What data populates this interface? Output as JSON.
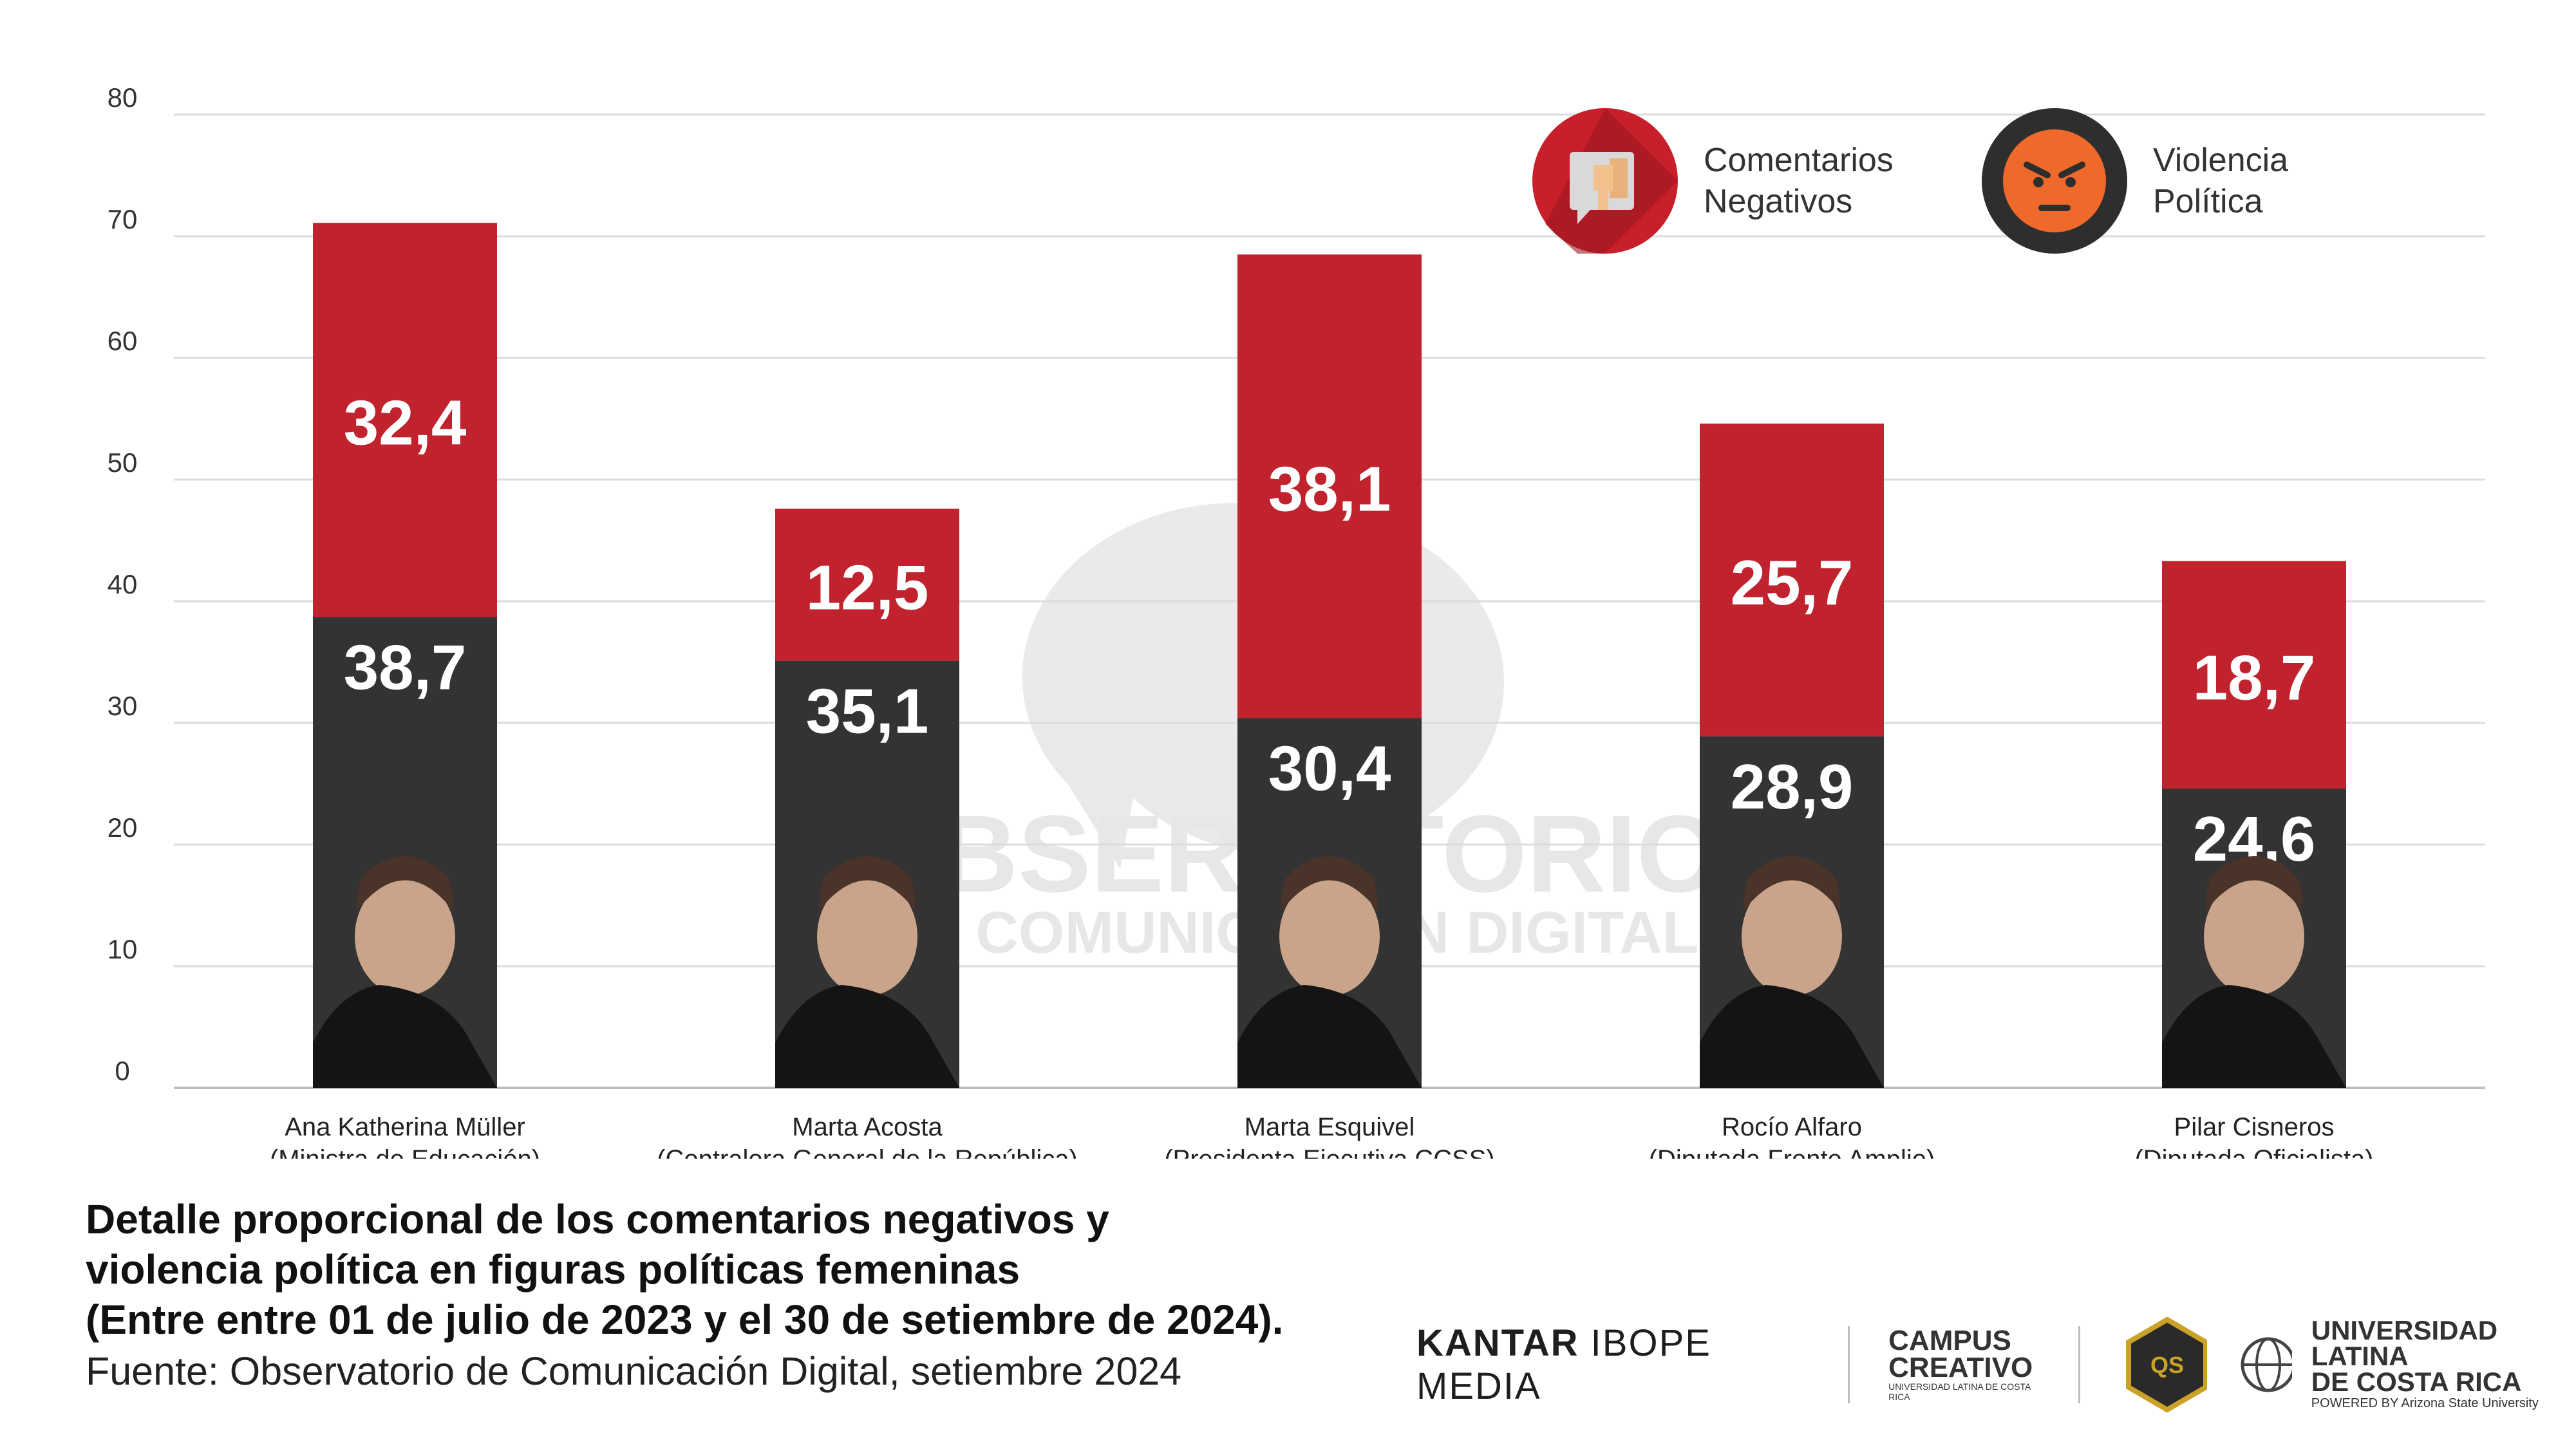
{
  "legend": {
    "negativos": {
      "label_line1": "Comentarios",
      "label_line2": "Negativos",
      "icon": "thumbs-down-icon",
      "color": "#c8202b"
    },
    "violencia": {
      "label_line1": "Violencia",
      "label_line2": "Política",
      "icon": "angry-face-icon",
      "color": "#2e2e2e"
    }
  },
  "watermark": {
    "line1": "OBSERVATORIO",
    "line2": "DE COMUNICACIÓN DIGITAL"
  },
  "caption": {
    "line1": "Detalle proporcional de los comentarios negativos y",
    "line2": "violencia política en figuras políticas femeninas",
    "line3": "(Entre entre 01 de julio de 2023 y el 30 de setiembre de 2024).",
    "source": "Fuente: Observatorio de Comunicación Digital, setiembre 2024"
  },
  "logos": {
    "kantar_bold": "KANTAR",
    "kantar_rest": " IBOPE MEDIA",
    "campus_line1": "CAMPUS",
    "campus_line2": "CREATIVO",
    "campus_sub": "UNIVERSIDAD LATINA DE COSTA RICA",
    "badge": "QS",
    "ulatina_line1": "UNIVERSIDAD LATINA",
    "ulatina_line2": "DE COSTA RICA",
    "ulatina_sub": "POWERED BY Arizona State University"
  },
  "chart_data": {
    "type": "bar",
    "stacked": true,
    "title": "",
    "xlabel": "",
    "ylabel": "",
    "ylim": [
      0,
      80
    ],
    "yticks": [
      0,
      10,
      20,
      30,
      40,
      50,
      60,
      70,
      80
    ],
    "grid": true,
    "categories": [
      {
        "name": "Ana Katherina Müller",
        "role": "(Ministra de Educación)"
      },
      {
        "name": "Marta Acosta",
        "role": "(Contralora General de la República)"
      },
      {
        "name": "Marta Esquivel",
        "role": "(Presidenta Ejecutiva CCSS)"
      },
      {
        "name": "Rocío Alfaro",
        "role": "(Diputada Frente Amplio)"
      },
      {
        "name": "Pilar Cisneros",
        "role": "(Diputada Oficialista)"
      }
    ],
    "series": [
      {
        "name": "Violencia Política",
        "color": "#333333",
        "values": [
          38.7,
          35.1,
          30.4,
          28.9,
          24.6
        ],
        "labels": [
          "38,7",
          "35,1",
          "30,4",
          "28,9",
          "24,6"
        ]
      },
      {
        "name": "Comentarios Negativos",
        "color": "#c0232d",
        "values": [
          32.4,
          12.5,
          38.1,
          25.7,
          18.7
        ],
        "labels": [
          "32,4",
          "12,5",
          "38,1",
          "25,7",
          "18,7"
        ]
      }
    ]
  }
}
